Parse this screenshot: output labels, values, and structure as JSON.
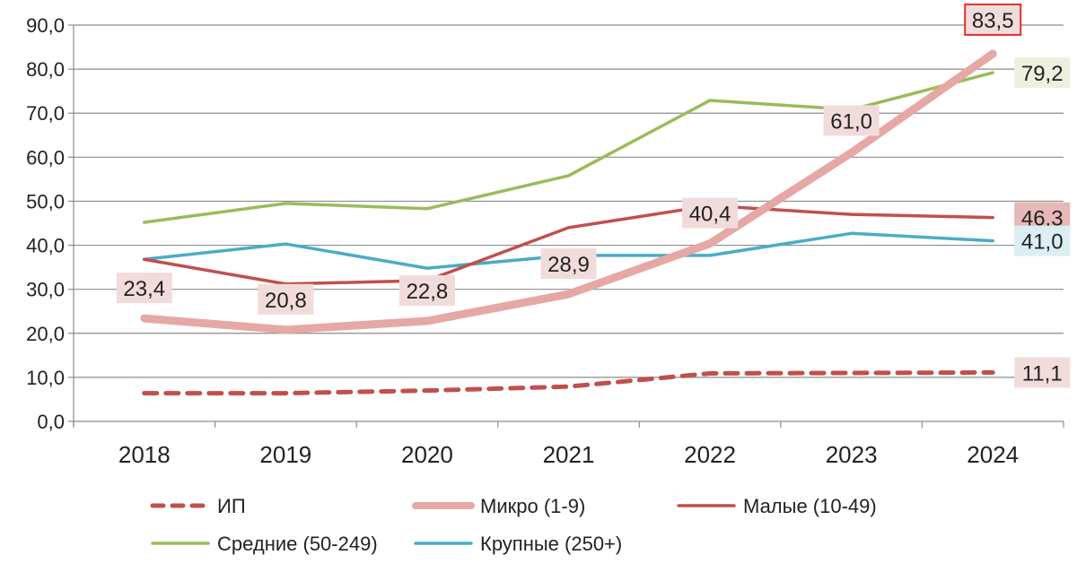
{
  "chart_data": {
    "type": "line",
    "title": "",
    "xlabel": "",
    "ylabel": "",
    "categories": [
      "2018",
      "2019",
      "2020",
      "2021",
      "2022",
      "2023",
      "2024"
    ],
    "ylim": [
      0,
      90
    ],
    "yticks": [
      "0,0",
      "10,0",
      "20,0",
      "30,0",
      "40,0",
      "50,0",
      "60,0",
      "70,0",
      "80,0",
      "90,0"
    ],
    "grid": "horizontal",
    "legend_position": "bottom",
    "series": [
      {
        "name": "ИП",
        "values": [
          6.4,
          6.4,
          7.0,
          7.9,
          10.9,
          11.0,
          11.1
        ],
        "color": "#c0504d",
        "style": "dashed",
        "labels": [
          {
            "index": 6,
            "text": "11,1",
            "bg": "#f2dcdb",
            "border": ""
          }
        ]
      },
      {
        "name": "Микро (1-9)",
        "values": [
          23.4,
          20.8,
          22.8,
          28.9,
          40.4,
          61.0,
          83.5
        ],
        "color": "#e6a8a5",
        "style": "thick",
        "labels": [
          {
            "index": 0,
            "text": "23,4",
            "bg": "#f2dcdb",
            "border": ""
          },
          {
            "index": 1,
            "text": "20,8",
            "bg": "#f2dcdb",
            "border": ""
          },
          {
            "index": 2,
            "text": "22,8",
            "bg": "#f2dcdb",
            "border": ""
          },
          {
            "index": 3,
            "text": "28,9",
            "bg": "#f2dcdb",
            "border": ""
          },
          {
            "index": 4,
            "text": "40,4",
            "bg": "#f2dcdb",
            "border": ""
          },
          {
            "index": 5,
            "text": "61,0",
            "bg": "#f2dcdb",
            "border": ""
          },
          {
            "index": 6,
            "text": "83,5",
            "bg": "#f2dcdb",
            "border": "#e03030"
          }
        ]
      },
      {
        "name": "Малые (10-49)",
        "values": [
          36.8,
          31.2,
          32.0,
          44.0,
          49.0,
          47.0,
          46.3
        ],
        "color": "#c0504d",
        "style": "solid",
        "labels": [
          {
            "index": 6,
            "text": "46.3",
            "bg": "#e6b8b7",
            "border": ""
          }
        ]
      },
      {
        "name": "Средние (50-249)",
        "values": [
          45.2,
          49.5,
          48.3,
          55.8,
          72.9,
          70.8,
          79.2
        ],
        "color": "#9bbb59",
        "style": "solid",
        "labels": [
          {
            "index": 6,
            "text": "79,2",
            "bg": "#ebf1de",
            "border": ""
          }
        ]
      },
      {
        "name": "Крупные (250+)",
        "values": [
          36.8,
          40.3,
          34.8,
          37.7,
          37.7,
          42.7,
          41.0
        ],
        "color": "#4bacc6",
        "style": "solid",
        "labels": [
          {
            "index": 6,
            "text": "41,0",
            "bg": "#dbeef4",
            "border": ""
          }
        ]
      }
    ]
  }
}
